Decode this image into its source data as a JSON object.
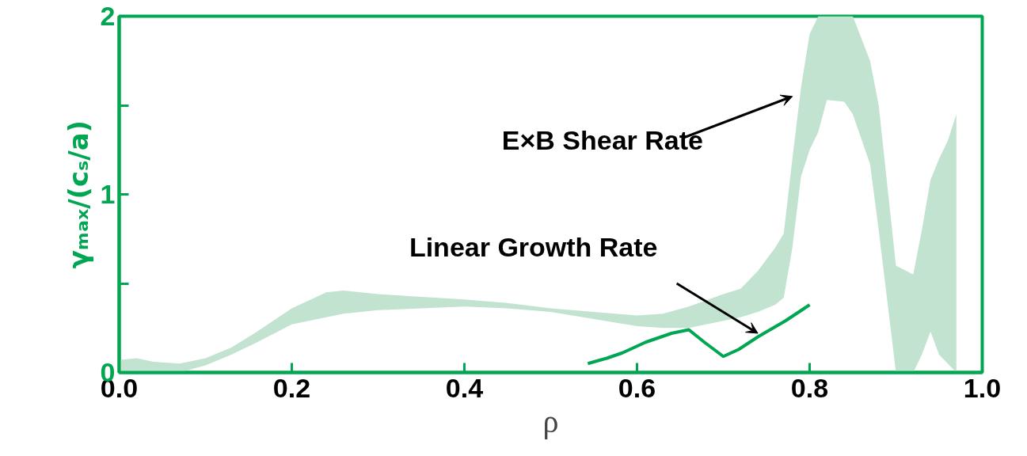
{
  "chart_data": {
    "type": "area",
    "xlabel": "ρ",
    "ylabel": "γₘₐₓ/(cₛ/a)",
    "xlim": [
      0.0,
      1.0
    ],
    "xticks": [
      {
        "value": 0.0,
        "label": "0.0"
      },
      0.2,
      0.4,
      0.6,
      0.8,
      {
        "value": 1.0,
        "label": "1.0"
      }
    ],
    "ylim": [
      0,
      2
    ],
    "yticks": [
      0,
      {
        "value": 0.5,
        "label": null
      },
      1,
      {
        "value": 1.5,
        "label": null
      },
      2
    ],
    "grid": false,
    "series": [
      {
        "color": "#c2e3d0",
        "x": [
          0.0,
          0.02,
          0.04,
          0.07,
          0.1,
          0.13,
          0.16,
          0.2,
          0.24,
          0.26,
          0.3,
          0.4,
          0.45,
          0.5,
          0.55,
          0.6,
          0.63,
          0.66,
          0.7,
          0.72,
          0.74,
          0.76,
          0.77,
          0.78,
          0.79,
          0.8,
          0.81,
          0.82,
          0.84,
          0.85,
          0.87,
          0.88,
          0.9,
          0.92,
          0.93,
          0.94,
          0.95,
          0.96,
          0.97
        ],
        "values": [
          null,
          null,
          null,
          null,
          null,
          null,
          null,
          null,
          null,
          null,
          null,
          null,
          null,
          null,
          null,
          null,
          null,
          null,
          null,
          null,
          null,
          null,
          null,
          null,
          null,
          null,
          null,
          null,
          null,
          null,
          null,
          null,
          null,
          null,
          null,
          null,
          null,
          null,
          null
        ],
        "upper": [
          0.07,
          0.08,
          0.06,
          0.05,
          0.08,
          0.14,
          0.23,
          0.36,
          0.45,
          0.46,
          0.44,
          0.41,
          0.39,
          0.36,
          0.34,
          0.32,
          0.33,
          0.37,
          0.44,
          0.47,
          0.57,
          0.7,
          0.78,
          1.2,
          1.6,
          1.9,
          2.0,
          2.0,
          2.0,
          2.0,
          1.75,
          1.5,
          0.6,
          0.55,
          0.8,
          1.08,
          1.2,
          1.3,
          1.45
        ],
        "lower": [
          0,
          0,
          0,
          0,
          0.04,
          0.1,
          0.17,
          0.27,
          0.31,
          0.33,
          0.35,
          0.37,
          0.36,
          0.34,
          0.3,
          0.26,
          0.25,
          0.25,
          0.29,
          0.31,
          0.34,
          0.38,
          0.42,
          0.7,
          1.1,
          1.25,
          1.35,
          1.53,
          1.52,
          1.45,
          1.17,
          0.8,
          0,
          0,
          0.1,
          0.23,
          0.1,
          0.05,
          0
        ]
      },
      {
        "type": "line",
        "color": "#00a651",
        "x": [
          0.543,
          0.565,
          0.583,
          0.61,
          0.64,
          0.66,
          0.678,
          0.7,
          0.718,
          0.74,
          0.772,
          0.8
        ],
        "values": [
          0.05,
          0.08,
          0.11,
          0.17,
          0.22,
          0.24,
          0.17,
          0.09,
          0.13,
          0.2,
          0.29,
          0.38
        ]
      }
    ],
    "annotations": [
      "E×B Shear Rate",
      {
        "text": "Linear Growth Rate",
        "x": 0.74,
        "y": 0.22
      }
    ]
  }
}
